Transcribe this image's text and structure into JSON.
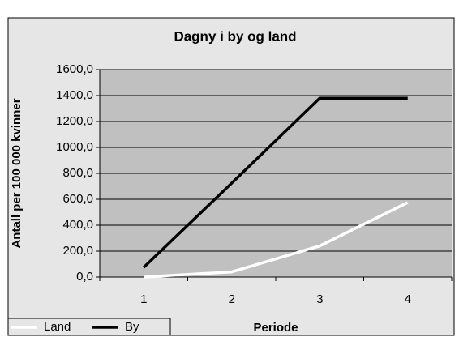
{
  "chart_data": {
    "type": "line",
    "title": "Dagny i by og land",
    "x_label": "Periode",
    "y_label": "Antall per 100 000 kvinner",
    "categories": [
      "1",
      "2",
      "3",
      "4"
    ],
    "series": [
      {
        "name": "Land",
        "color": "#ffffff",
        "values": [
          0,
          40,
          240,
          575
        ]
      },
      {
        "name": "By",
        "color": "#000000",
        "values": [
          75,
          725,
          1380,
          1380
        ]
      }
    ],
    "ylim": [
      0,
      1600
    ],
    "yticks": [
      {
        "value": 0,
        "label": "0,0"
      },
      {
        "value": 200,
        "label": "200,0"
      },
      {
        "value": 400,
        "label": "400,0"
      },
      {
        "value": 600,
        "label": "600,0"
      },
      {
        "value": 800,
        "label": "800,0"
      },
      {
        "value": 1000,
        "label": "1000,0"
      },
      {
        "value": 1200,
        "label": "1200,0"
      },
      {
        "value": 1400,
        "label": "1400,0"
      },
      {
        "value": 1600,
        "label": "1600,0"
      }
    ],
    "grid": true,
    "legend": "bottom-left"
  }
}
